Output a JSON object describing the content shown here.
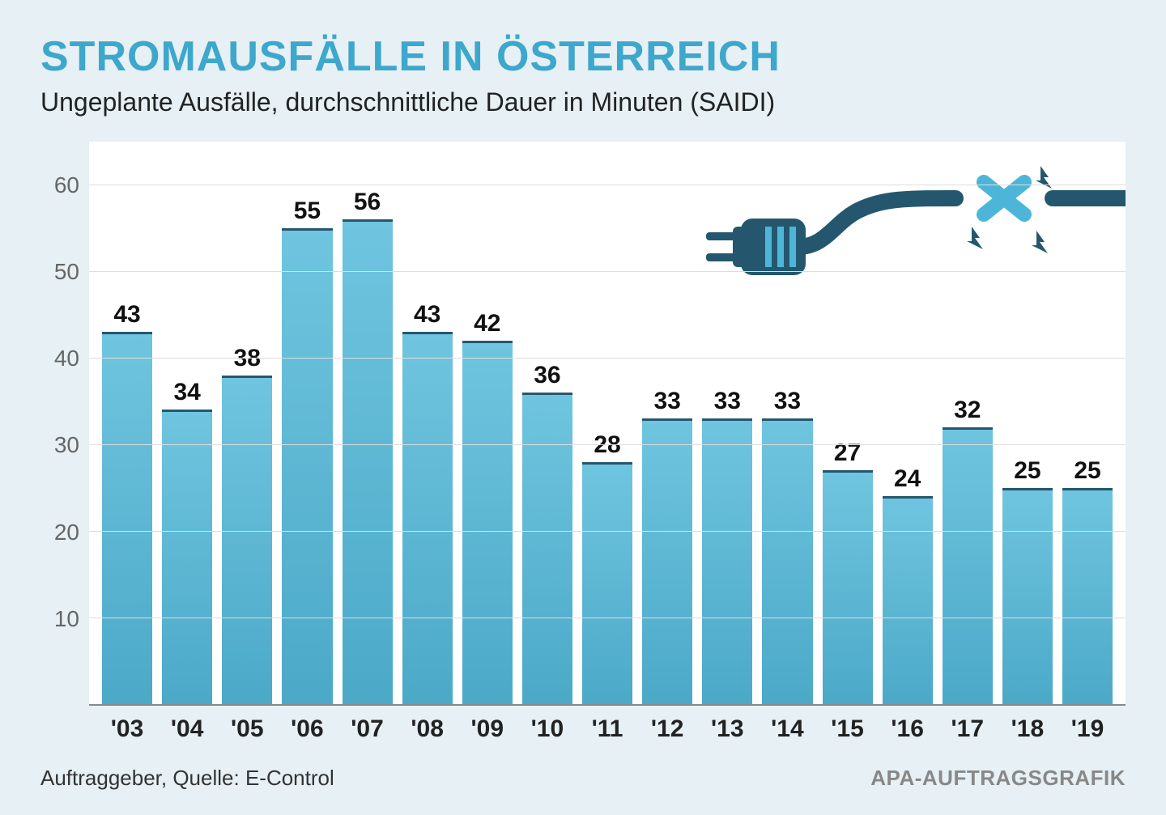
{
  "title": "STROMAUSFÄLLE IN ÖSTERREICH",
  "title_color": "#3ea7cc",
  "subtitle": "Ungeplante Ausfälle, durchschnittliche Dauer in Minuten (SAIDI)",
  "footer_left": "Auftraggeber, Quelle: E-Control",
  "footer_right": "APA-AUFTRAGSGRAFIK",
  "chart": {
    "type": "bar",
    "background_color": "#ffffff",
    "page_background_color": "#e6f0f5",
    "grid_color": "#dddddd",
    "bar_color_top": "#6fc5df",
    "bar_color_bottom": "#4ba9c8",
    "bar_border_top_color": "#26566d",
    "value_label_fontsize": 30,
    "x_label_fontsize": 30,
    "y_label_fontsize": 28,
    "y_label_color": "#666666",
    "ylim": [
      0,
      65
    ],
    "yticks": [
      10,
      20,
      30,
      40,
      50,
      60
    ],
    "categories": [
      "'03",
      "'04",
      "'05",
      "'06",
      "'07",
      "'08",
      "'09",
      "'10",
      "'11",
      "'12",
      "'13",
      "'14",
      "'15",
      "'16",
      "'17",
      "'18",
      "'19"
    ],
    "values": [
      43,
      34,
      38,
      55,
      56,
      43,
      42,
      36,
      28,
      33,
      33,
      33,
      27,
      24,
      32,
      25,
      25
    ]
  },
  "plug": {
    "body_color": "#24576e",
    "x_color": "#4db6d8",
    "bolt_color": "#24576e"
  }
}
